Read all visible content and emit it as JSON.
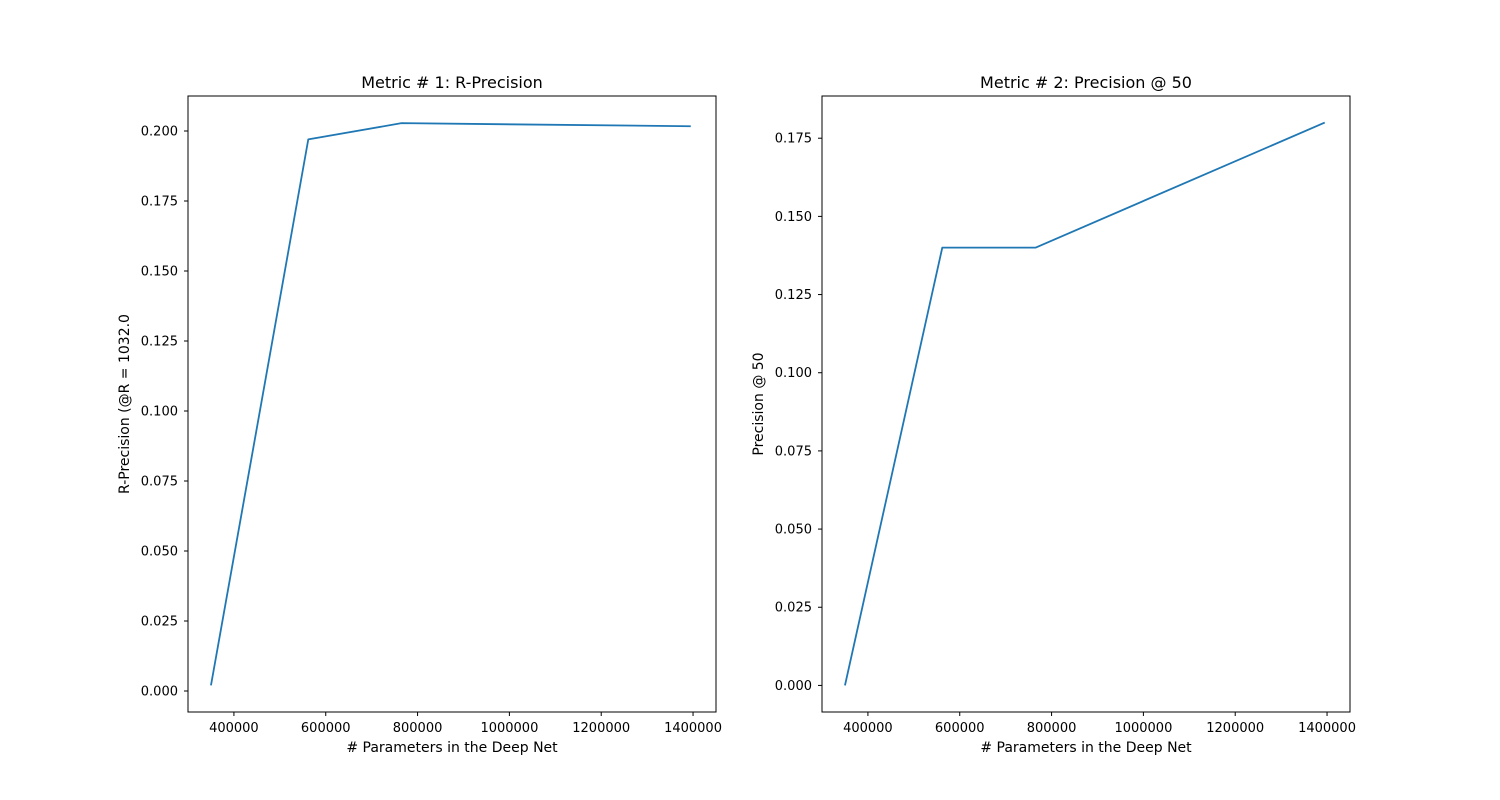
{
  "chart_data": [
    {
      "type": "line",
      "title": "Metric # 1: R-Precision",
      "xlabel": "# Parameters in the Deep Net",
      "ylabel": "R-Precision (@R = 1032.0",
      "xlim": [
        300000,
        1450000
      ],
      "ylim": [
        -0.0075,
        0.2125
      ],
      "xticks": [
        400000,
        600000,
        800000,
        1000000,
        1200000,
        1400000
      ],
      "xtick_labels": [
        "400000",
        "600000",
        "800000",
        "1000000",
        "1200000",
        "1400000"
      ],
      "yticks": [
        0.0,
        0.025,
        0.05,
        0.075,
        0.1,
        0.125,
        0.15,
        0.175,
        0.2
      ],
      "ytick_labels": [
        "0.000",
        "0.025",
        "0.050",
        "0.075",
        "0.100",
        "0.125",
        "0.150",
        "0.175",
        "0.200"
      ],
      "grid": false,
      "series": [
        {
          "color": "#1f77b4",
          "x": [
            350000,
            562000,
            765000,
            1395000
          ],
          "y": [
            0.002,
            0.197,
            0.2028,
            0.2017
          ]
        }
      ]
    },
    {
      "type": "line",
      "title": "Metric # 2: Precision @ 50",
      "xlabel": "# Parameters in the Deep Net",
      "ylabel": "Precision @ 50",
      "xlim": [
        300000,
        1450000
      ],
      "ylim": [
        -0.0085,
        0.1885
      ],
      "xticks": [
        400000,
        600000,
        800000,
        1000000,
        1200000,
        1400000
      ],
      "xtick_labels": [
        "400000",
        "600000",
        "800000",
        "1000000",
        "1200000",
        "1400000"
      ],
      "yticks": [
        0.0,
        0.025,
        0.05,
        0.075,
        0.1,
        0.125,
        0.15,
        0.175
      ],
      "ytick_labels": [
        "0.000",
        "0.025",
        "0.050",
        "0.075",
        "0.100",
        "0.125",
        "0.150",
        "0.175"
      ],
      "grid": false,
      "series": [
        {
          "color": "#1f77b4",
          "x": [
            350000,
            562000,
            765000,
            1395000
          ],
          "y": [
            0.0,
            0.14,
            0.14,
            0.18
          ]
        }
      ]
    }
  ]
}
